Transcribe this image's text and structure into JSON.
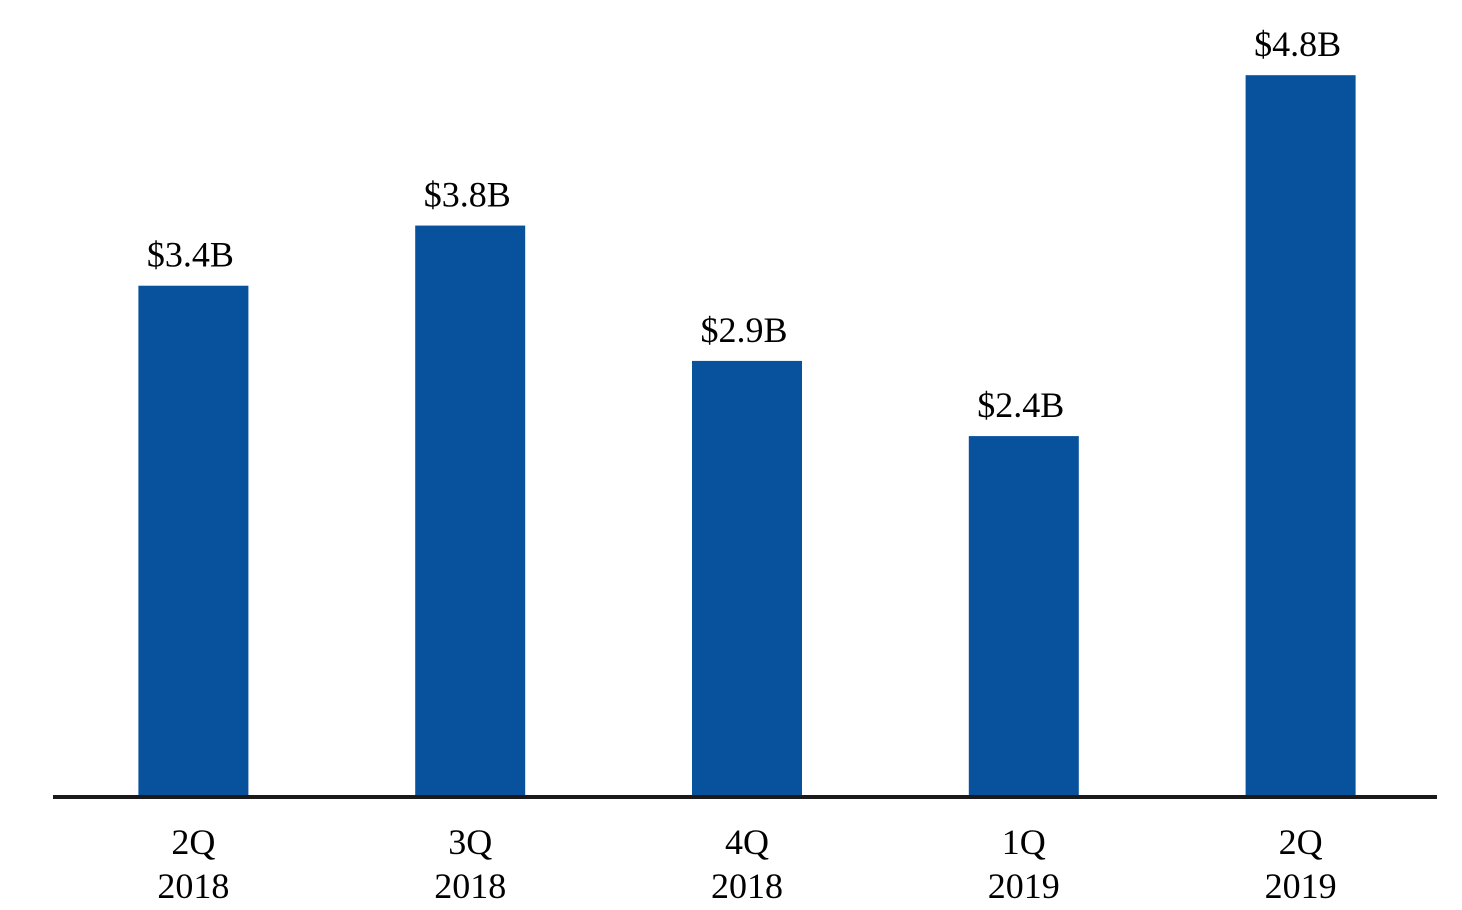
{
  "chart_data": {
    "type": "bar",
    "categories": [
      [
        "2Q",
        "2018"
      ],
      [
        "3Q",
        "2018"
      ],
      [
        "4Q",
        "2018"
      ],
      [
        "1Q",
        "2019"
      ],
      [
        "2Q",
        "2019"
      ]
    ],
    "values": [
      3.4,
      3.8,
      2.9,
      2.4,
      4.8
    ],
    "data_labels": [
      "$3.4B",
      "$3.8B",
      "$2.9B",
      "$2.4B",
      "$4.8B"
    ],
    "title": "",
    "xlabel": "",
    "ylabel": "",
    "ylim": [
      0,
      5.3
    ],
    "grid": false,
    "legend": "none",
    "colors": {
      "bar": "#08519c",
      "axis": "#1a1a1a",
      "text": "#000000"
    }
  }
}
